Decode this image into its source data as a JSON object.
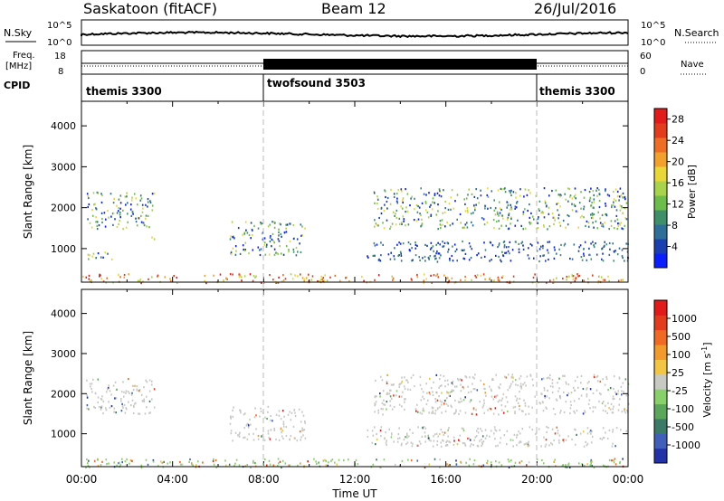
{
  "header": {
    "station": "Saskatoon (fitACF)",
    "beam": "Beam 12",
    "date": "26/Jul/2016"
  },
  "top_panels": {
    "nsky_label": "N.Sky",
    "nsearch_label": "N.Search",
    "nsky_ticks": [
      "10^5",
      "10^0"
    ],
    "nsearch_ticks": [
      "10^5",
      "10^0"
    ],
    "freq_label": "Freq.",
    "freq_unit": "[MHz]",
    "freq_ticks": [
      "18",
      "8"
    ],
    "nave_label": "Nave",
    "nave_ticks": [
      "60",
      "0"
    ],
    "cpid_label": "CPID",
    "cpid_segments": [
      {
        "name": "themis 3300",
        "start_h": 0,
        "end_h": 8
      },
      {
        "name": "twofsound 3503",
        "start_h": 8,
        "end_h": 20
      },
      {
        "name": "themis 3300",
        "start_h": 20,
        "end_h": 24
      }
    ]
  },
  "chart_data": [
    {
      "type": "heatmap",
      "title": "",
      "xlabel": "Time UT",
      "ylabel": "Slant Range [km]",
      "x_ticks": [
        "00:00",
        "04:00",
        "08:00",
        "12:00",
        "16:00",
        "20:00",
        "00:00"
      ],
      "xlim_hours": [
        0,
        24
      ],
      "y_ticks": [
        1000,
        2000,
        3000,
        4000
      ],
      "ylim": [
        180,
        4600
      ],
      "colorbar": {
        "label": "Power [dB]",
        "ticks": [
          4,
          8,
          12,
          16,
          20,
          24,
          28
        ],
        "range": [
          0,
          30
        ],
        "colors": [
          "#0a1fff",
          "#1a3fb0",
          "#2e6f9a",
          "#3f8f6a",
          "#6dbd4a",
          "#a9d34a",
          "#e9d637",
          "#f2a12c",
          "#f06e24",
          "#e23c1d",
          "#e21a1a"
        ]
      },
      "echo_regions_km": [
        {
          "t0": 0.2,
          "t1": 3.2,
          "r0": 1500,
          "r1": 2400,
          "level": "mid"
        },
        {
          "t0": 0.2,
          "t1": 1.4,
          "r0": 700,
          "r1": 950,
          "level": "mid"
        },
        {
          "t0": 2.8,
          "t1": 3.3,
          "r0": 1200,
          "r1": 1300,
          "level": "mid"
        },
        {
          "t0": 6.5,
          "t1": 9.8,
          "r0": 850,
          "r1": 1700,
          "level": "mid"
        },
        {
          "t0": 0.0,
          "t1": 24.0,
          "r0": 180,
          "r1": 400,
          "level": "high"
        },
        {
          "t0": 12.8,
          "t1": 24.0,
          "r0": 1500,
          "r1": 2500,
          "level": "mid"
        },
        {
          "t0": 12.5,
          "t1": 24.0,
          "r0": 700,
          "r1": 1200,
          "level": "low"
        }
      ]
    },
    {
      "type": "heatmap",
      "title": "",
      "xlabel": "Time UT",
      "ylabel": "Slant Range [km]",
      "x_ticks": [
        "00:00",
        "04:00",
        "08:00",
        "12:00",
        "16:00",
        "20:00",
        "00:00"
      ],
      "xlim_hours": [
        0,
        24
      ],
      "y_ticks": [
        1000,
        2000,
        3000,
        4000
      ],
      "ylim": [
        180,
        4600
      ],
      "colorbar": {
        "label": "Velocity [m s^-1]",
        "ticks": [
          1000,
          500,
          100,
          25,
          -25,
          -100,
          -500,
          -1000
        ],
        "colors": [
          "#2233aa",
          "#3f5fbb",
          "#3b7a66",
          "#5aa75c",
          "#88d06a",
          "#c9c9c4",
          "#f2c542",
          "#f29a2c",
          "#f06a24",
          "#e23c1d",
          "#e21a1a"
        ]
      },
      "echo_regions_km": [
        {
          "t0": 0.2,
          "t1": 3.2,
          "r0": 1500,
          "r1": 2400,
          "level": "grey"
        },
        {
          "t0": 6.5,
          "t1": 9.8,
          "r0": 850,
          "r1": 1700,
          "level": "grey"
        },
        {
          "t0": 12.8,
          "t1": 24.0,
          "r0": 1500,
          "r1": 2500,
          "level": "grey"
        },
        {
          "t0": 0.0,
          "t1": 24.0,
          "r0": 180,
          "r1": 400,
          "level": "green"
        },
        {
          "t0": 12.5,
          "t1": 24.0,
          "r0": 700,
          "r1": 1200,
          "level": "grey"
        }
      ]
    }
  ]
}
